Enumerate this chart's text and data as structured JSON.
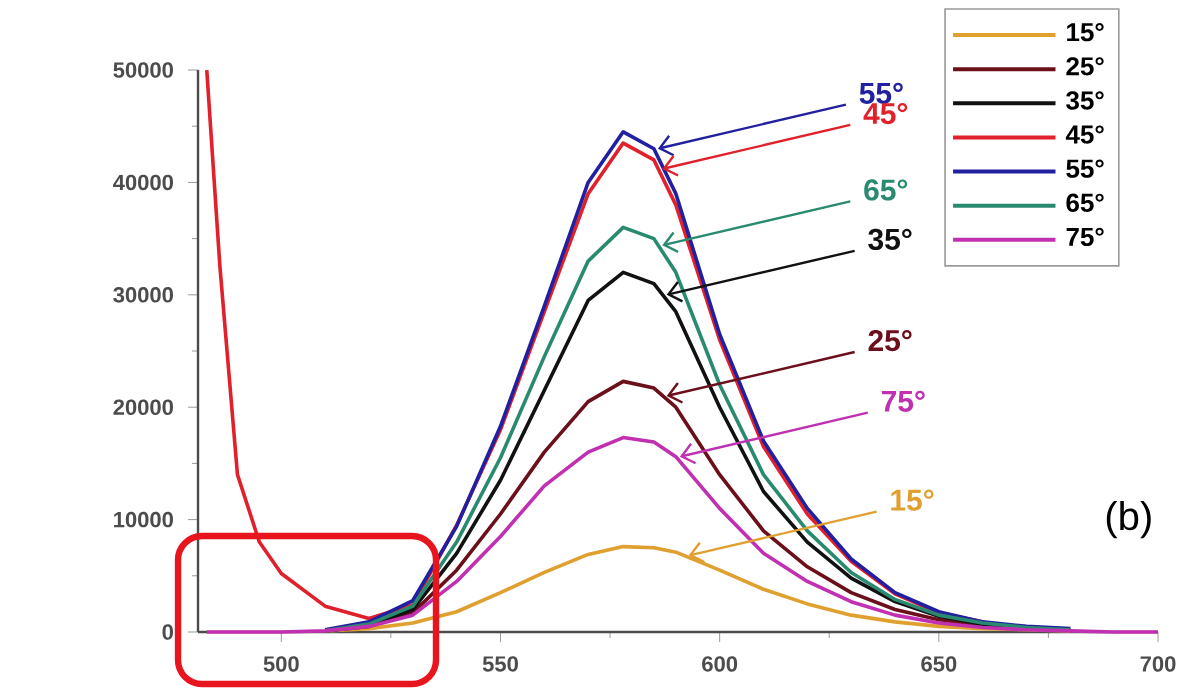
{
  "chart_data": {
    "type": "line",
    "x": [
      483,
      486,
      490,
      495,
      500,
      510,
      520,
      530,
      540,
      550,
      560,
      570,
      578,
      585,
      590,
      600,
      610,
      620,
      630,
      640,
      650,
      660,
      670,
      680,
      690,
      700
    ],
    "series": [
      {
        "name": "15°",
        "color": "#e0a030",
        "values": [
          null,
          null,
          null,
          null,
          null,
          100,
          300,
          800,
          1800,
          3500,
          5300,
          6900,
          7600,
          7500,
          7100,
          5500,
          3800,
          2500,
          1500,
          900,
          500,
          300,
          200,
          100,
          null,
          null
        ]
      },
      {
        "name": "25°",
        "color": "#6b0f1a",
        "values": [
          null,
          null,
          null,
          null,
          null,
          100,
          500,
          1700,
          5500,
          10500,
          16000,
          20500,
          22300,
          21700,
          20000,
          14000,
          9000,
          5800,
          3500,
          2000,
          1100,
          600,
          300,
          200,
          null,
          null
        ]
      },
      {
        "name": "35°",
        "color": "#111111",
        "values": [
          null,
          null,
          null,
          null,
          null,
          100,
          600,
          2000,
          7000,
          13500,
          21500,
          29500,
          32000,
          31000,
          28500,
          20000,
          12500,
          8000,
          4800,
          2700,
          1400,
          700,
          400,
          200,
          null,
          null
        ]
      },
      {
        "name": "45°",
        "color": "#e0202a",
        "values": [
          50000,
          32500,
          14000,
          8000,
          5200,
          2300,
          1200,
          2400,
          9500,
          18000,
          28500,
          39000,
          43500,
          42000,
          38000,
          26000,
          16500,
          10500,
          6300,
          3400,
          1700,
          900,
          null,
          null,
          null,
          null
        ]
      },
      {
        "name": "55°",
        "color": "#2020a0",
        "values": [
          null,
          null,
          null,
          null,
          null,
          200,
          900,
          2800,
          9400,
          18300,
          29000,
          40000,
          44500,
          43000,
          39000,
          26500,
          17000,
          11000,
          6500,
          3500,
          1800,
          900,
          500,
          300,
          null,
          null
        ]
      },
      {
        "name": "65°",
        "color": "#2a8a70",
        "values": [
          null,
          null,
          null,
          null,
          null,
          100,
          700,
          2300,
          8000,
          15500,
          24500,
          33000,
          36000,
          35000,
          32000,
          22000,
          14000,
          9000,
          5300,
          2900,
          1500,
          800,
          400,
          200,
          null,
          null
        ]
      },
      {
        "name": "75°",
        "color": "#c030b0",
        "values": [
          0,
          0,
          0,
          0,
          0,
          100,
          500,
          1500,
          4500,
          8500,
          13000,
          16000,
          17300,
          16900,
          15600,
          11000,
          7000,
          4500,
          2700,
          1500,
          800,
          400,
          200,
          100,
          0,
          0
        ]
      }
    ],
    "xlim": [
      481,
      700
    ],
    "xticks": [
      500,
      550,
      600,
      650,
      700
    ],
    "ylim": [
      0,
      50000
    ],
    "yticks": [
      0,
      10000,
      20000,
      30000,
      40000,
      50000
    ],
    "legend": "top right",
    "grid": false,
    "marker": "none",
    "line_style": "solid",
    "annotations": [
      {
        "text": "55°",
        "x": 585,
        "y": 43000
      },
      {
        "text": "45°",
        "x": 586,
        "y": 41200
      },
      {
        "text": "65°",
        "x": 586,
        "y": 34400
      },
      {
        "text": "35°",
        "x": 587,
        "y": 30000
      },
      {
        "text": "25°",
        "x": 587,
        "y": 21000
      },
      {
        "text": "75°",
        "x": 590,
        "y": 15600
      },
      {
        "text": "15°",
        "x": 592,
        "y": 6800
      },
      "(b)"
    ]
  }
}
